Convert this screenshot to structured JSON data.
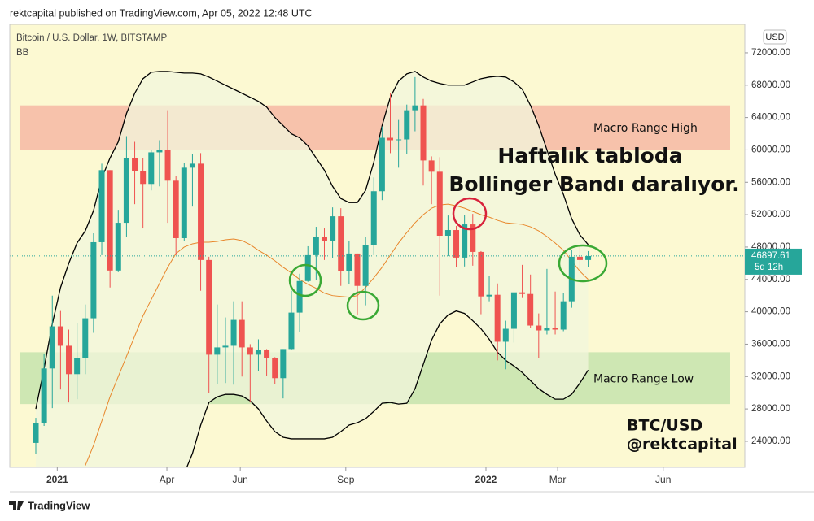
{
  "chart_data": {
    "type": "candlestick",
    "header": "rektcapital published on TradingView.com, Apr 05, 2022 12:48 UTC",
    "title": "Bitcoin / U.S. Dollar, 1W, BITSTAMP",
    "indicator": "BB",
    "currency": "USD",
    "annotations": [
      "Haftalık tabloda",
      "Bollinger Bandı daralıyor."
    ],
    "watermark": [
      "BTC/USD",
      "@rektcapital"
    ],
    "footer": "TradingView",
    "up_color": "#26a69a",
    "down_color": "#ef5350",
    "open": [
      23800,
      26250,
      33000,
      38200,
      35800,
      32300,
      34300,
      39200,
      48600,
      57500,
      45100,
      51000,
      59000,
      57400,
      55800,
      59700,
      60000,
      56200,
      49100,
      57800,
      58300,
      46400,
      34700,
      35600,
      35800,
      39000,
      35600,
      34700,
      35300,
      34300,
      31800,
      35400,
      39900,
      43800,
      47000,
      49300,
      48800,
      51800,
      45000,
      47200,
      43200,
      48200,
      54900,
      61500,
      61200,
      61300,
      64900,
      65500,
      58700,
      57300,
      49400,
      50100,
      46700,
      50800,
      47400,
      41900,
      42100,
      36300,
      37900,
      42400,
      42200,
      38300,
      37700,
      38000,
      37800,
      41300,
      46800,
      46400
    ],
    "high": [
      26900,
      34800,
      42000,
      40100,
      37800,
      38600,
      40900,
      49700,
      58300,
      57500,
      52600,
      61700,
      61000,
      59000,
      60000,
      61200,
      64900,
      56800,
      58400,
      59500,
      59600,
      46800,
      40900,
      39300,
      41300,
      41300,
      36000,
      36600,
      35400,
      34400,
      35400,
      42600,
      44700,
      48100,
      50500,
      50300,
      52900,
      52800,
      48800,
      47200,
      49200,
      56600,
      62900,
      67000,
      63700,
      65600,
      69000,
      66300,
      59200,
      59100,
      51900,
      50600,
      52000,
      52100,
      47500,
      44400,
      43500,
      38900,
      42000,
      45800,
      44600,
      39800,
      45300,
      42500,
      42300,
      47700,
      48200,
      47500
    ],
    "low": [
      22400,
      25900,
      28100,
      30400,
      28800,
      29200,
      32300,
      37400,
      47000,
      43000,
      44900,
      49200,
      53300,
      50300,
      55000,
      55500,
      51000,
      47000,
      48800,
      53000,
      42600,
      30000,
      31100,
      31200,
      31000,
      32000,
      28800,
      32700,
      32100,
      31100,
      29300,
      35300,
      37500,
      43700,
      43900,
      46400,
      46600,
      43200,
      43400,
      39600,
      40800,
      47000,
      53800,
      59600,
      57800,
      59500,
      62300,
      55600,
      53300,
      42000,
      46900,
      45500,
      45600,
      45700,
      39700,
      41300,
      34000,
      32900,
      36200,
      41700,
      38000,
      34300,
      37200,
      37200,
      37600,
      40500,
      45200,
      45500
    ],
    "close": [
      26250,
      33000,
      38200,
      35800,
      32300,
      34300,
      39200,
      48600,
      57500,
      45100,
      51000,
      59000,
      57400,
      55800,
      59700,
      60000,
      56200,
      49100,
      57800,
      58300,
      46400,
      34700,
      35600,
      35800,
      39000,
      35600,
      34700,
      35300,
      34300,
      31800,
      35400,
      39900,
      43800,
      47000,
      49300,
      48800,
      51800,
      45000,
      47200,
      43200,
      48200,
      54900,
      61500,
      61200,
      61300,
      64900,
      65500,
      58700,
      57300,
      49400,
      50100,
      46700,
      50800,
      47400,
      41900,
      42100,
      36300,
      37900,
      42400,
      42200,
      38300,
      37700,
      38000,
      37800,
      41300,
      46800,
      46400,
      46897.61
    ],
    "bands": [
      {
        "color": "#000000",
        "values": [
          28000,
          33000,
          38500,
          43000,
          46000,
          48500,
          50000,
          52500,
          56500,
          59000,
          61000,
          64500,
          67000,
          68800,
          69600,
          69700,
          69700,
          69600,
          69500,
          69500,
          69400,
          69000,
          68500,
          68000,
          67500,
          67000,
          66500,
          66000,
          65300,
          64000,
          63000,
          62000,
          61500,
          60500,
          59000,
          57500,
          55500,
          54000,
          53500,
          53500,
          55000,
          58500,
          63000,
          66500,
          68500,
          69400,
          69700,
          69000,
          68500,
          68200,
          68000,
          68000,
          68000,
          68400,
          68800,
          69000,
          69100,
          69000,
          68400,
          67500,
          65500,
          63000,
          60000,
          57000,
          54500,
          51500,
          49500,
          48300
        ]
      },
      {
        "color": "#e8862a",
        "values": [
          null,
          null,
          null,
          null,
          null,
          null,
          21000,
          23500,
          26500,
          29500,
          32000,
          34500,
          37000,
          39500,
          41500,
          43500,
          45500,
          47200,
          48000,
          48400,
          48600,
          48600,
          48700,
          48900,
          49000,
          48800,
          48300,
          47600,
          47000,
          46300,
          45500,
          44800,
          44000,
          43400,
          42900,
          42300,
          42000,
          41900,
          41800,
          42000,
          43000,
          44200,
          45500,
          47000,
          48500,
          49800,
          51000,
          52000,
          52800,
          53200,
          53300,
          53100,
          52800,
          52400,
          52000,
          51700,
          51300,
          51000,
          50900,
          50800,
          50500,
          50000,
          49300,
          48500,
          47600,
          46300,
          45000,
          44000
        ]
      },
      {
        "color": "#000000",
        "values": [
          null,
          null,
          null,
          null,
          null,
          null,
          null,
          null,
          null,
          null,
          null,
          null,
          null,
          null,
          null,
          null,
          null,
          null,
          20000,
          22500,
          26000,
          28800,
          29500,
          29800,
          29800,
          29600,
          29000,
          28000,
          26500,
          25200,
          24500,
          24300,
          24300,
          24300,
          24300,
          24300,
          24500,
          25200,
          26000,
          26300,
          26800,
          27700,
          28700,
          28800,
          28600,
          28700,
          30500,
          33500,
          36500,
          38500,
          39600,
          40100,
          39800,
          38900,
          37900,
          36600,
          35000,
          34000,
          33300,
          32500,
          31500,
          30500,
          29800,
          29200,
          29200,
          29800,
          31200,
          32800
        ]
      }
    ],
    "zones": [
      {
        "label": "Macro Range High",
        "top": 65500,
        "bottom": 60000,
        "color": "#f6b8a4"
      },
      {
        "label": "Macro Range Low",
        "top": 35000,
        "bottom": 28600,
        "color": "#c5e4ae"
      }
    ],
    "last_price": {
      "value": 46897.61,
      "label": "46897.61",
      "countdown": "5d 12h"
    },
    "xlim": [
      -3.16,
      86
    ],
    "xticks": [
      {
        "value": 2.6,
        "label": "2021"
      },
      {
        "value": 15.9,
        "label": "Apr"
      },
      {
        "value": 24.8,
        "label": "Jun"
      },
      {
        "value": 37.6,
        "label": "Sep"
      },
      {
        "value": 54.6,
        "label": "2022"
      },
      {
        "value": 63.3,
        "label": "Mar"
      },
      {
        "value": 76.1,
        "label": "Jun"
      }
    ],
    "ylim": [
      20780,
      75510
    ],
    "yticks": [
      {
        "value": 24000,
        "label": "24000.00"
      },
      {
        "value": 28000,
        "label": "28000.00"
      },
      {
        "value": 32000,
        "label": "32000.00"
      },
      {
        "value": 36000,
        "label": "36000.00"
      },
      {
        "value": 40000,
        "label": "40000.00"
      },
      {
        "value": 44000,
        "label": "44000.00"
      },
      {
        "value": 48000,
        "label": "48000.00"
      },
      {
        "value": 52000,
        "label": "52000.00"
      },
      {
        "value": 56000,
        "label": "56000.00"
      },
      {
        "value": 60000,
        "label": "60000.00"
      },
      {
        "value": 64000,
        "label": "64000.00"
      },
      {
        "value": 68000,
        "label": "68000.00"
      },
      {
        "value": 72000,
        "label": "72000.00"
      }
    ]
  }
}
